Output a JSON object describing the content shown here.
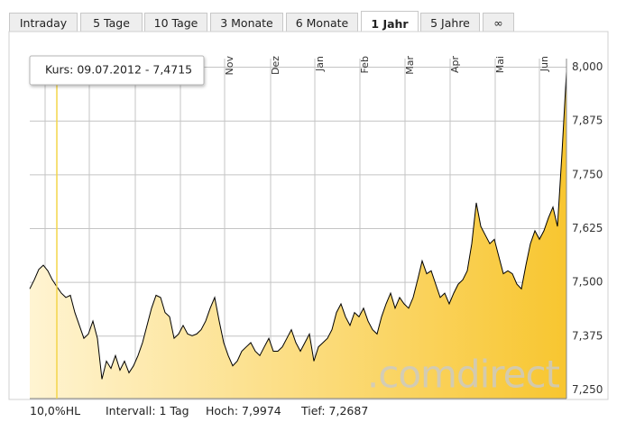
{
  "tabs": [
    "Intraday",
    "5 Tage",
    "10 Tage",
    "3 Monate",
    "6 Monate",
    "1 Jahr",
    "5 Jahre",
    "∞"
  ],
  "active_tab": 5,
  "tooltip": "Kurs: 09.07.2012 - 7,4715",
  "watermark": ".comdirect",
  "footer": [
    "10,0%HL",
    "Intervall: 1 Tag",
    "Hoch: 7,9974",
    "Tief: 7,2687"
  ],
  "chart_data": {
    "type": "area",
    "series": [
      {
        "color": "#000000",
        "fill_from": "#fff4d2",
        "fill_to": "#f8c630",
        "values": [
          7.485,
          7.506,
          7.53,
          7.54,
          7.527,
          7.506,
          7.49,
          7.475,
          7.465,
          7.47,
          7.43,
          7.4,
          7.37,
          7.38,
          7.41,
          7.37,
          7.275,
          7.317,
          7.3,
          7.33,
          7.296,
          7.317,
          7.29,
          7.306,
          7.33,
          7.36,
          7.4,
          7.44,
          7.47,
          7.465,
          7.43,
          7.42,
          7.37,
          7.38,
          7.4,
          7.38,
          7.376,
          7.38,
          7.39,
          7.41,
          7.44,
          7.465,
          7.41,
          7.36,
          7.33,
          7.306,
          7.317,
          7.34,
          7.35,
          7.36,
          7.34,
          7.33,
          7.35,
          7.37,
          7.34,
          7.34,
          7.35,
          7.37,
          7.39,
          7.36,
          7.34,
          7.36,
          7.38,
          7.317,
          7.35,
          7.36,
          7.37,
          7.39,
          7.43,
          7.45,
          7.42,
          7.4,
          7.43,
          7.42,
          7.44,
          7.41,
          7.39,
          7.38,
          7.42,
          7.45,
          7.475,
          7.44,
          7.465,
          7.45,
          7.44,
          7.465,
          7.506,
          7.55,
          7.52,
          7.527,
          7.496,
          7.465,
          7.475,
          7.45,
          7.475,
          7.496,
          7.506,
          7.527,
          7.59,
          7.685,
          7.63,
          7.61,
          7.59,
          7.6,
          7.56,
          7.52,
          7.527,
          7.52,
          7.496,
          7.485,
          7.54,
          7.59,
          7.62,
          7.6,
          7.62,
          7.65,
          7.675,
          7.63,
          7.8,
          7.99
        ]
      }
    ],
    "xlim": [
      0,
      119
    ],
    "xticks": [
      3.4,
      13.2,
      23.4,
      33.4,
      43.2,
      53.4,
      63.2,
      73.2,
      83.2,
      93.2,
      103.2,
      113
    ],
    "xtick_labels": [
      null,
      null,
      null,
      null,
      "Nov",
      "Dez",
      "Jan",
      "Feb",
      "Mar",
      "Apr",
      "Mai",
      "Jun"
    ],
    "highlight_x": 6,
    "ylim": [
      7.23,
      8.02
    ],
    "yticks": [
      {
        "value": 7.25,
        "label": "7,250"
      },
      {
        "value": 7.375,
        "label": "7,375"
      },
      {
        "value": 7.5,
        "label": "7,500"
      },
      {
        "value": 7.625,
        "label": "7,625"
      },
      {
        "value": 7.75,
        "label": "7,750"
      },
      {
        "value": 7.875,
        "label": "7,875"
      },
      {
        "value": 8,
        "label": "8,000"
      }
    ],
    "grid": true
  }
}
